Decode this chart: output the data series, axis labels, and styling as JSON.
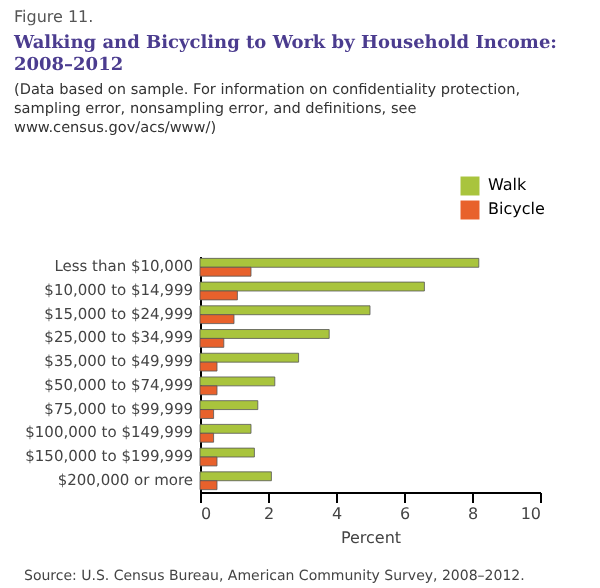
{
  "chart_data": {
    "type": "bar",
    "orientation": "horizontal",
    "title": "Walking and Bicycling to Work by Household Income:\n2008–2012",
    "subtitle": "(Data based on sample. For information on confidentiality protection,\nsampling error, nonsampling error, and definitions, see\nwww.census.gov/acs/www/)",
    "annotations": [
      "Figure 11.",
      "Source: U.S. Census Bureau, American Community Survey, 2008–2012."
    ],
    "categories": [
      "Less than $10,000",
      "$10,000 to $14,999",
      "$15,000 to $24,999",
      "$25,000 to $34,999",
      "$35,000 to $49,999",
      "$50,000 to $74,999",
      "$75,000 to $99,999",
      "$100,000 to $149,999",
      "$150,000 to $199,999",
      "$200,000 or more"
    ],
    "series": [
      {
        "name": "Walk",
        "color": "#a9c43d",
        "values": [
          8.2,
          6.6,
          5.0,
          3.8,
          2.9,
          2.2,
          1.7,
          1.5,
          1.6,
          2.1
        ]
      },
      {
        "name": "Bicycle",
        "color": "#e8612c",
        "values": [
          1.5,
          1.1,
          1.0,
          0.7,
          0.5,
          0.5,
          0.4,
          0.4,
          0.5,
          0.5
        ]
      }
    ],
    "xlabel": "Percent",
    "xlim": [
      0,
      10
    ],
    "xticks": [
      0,
      2,
      4,
      6,
      8,
      10
    ],
    "grid": false,
    "legend": "top right"
  }
}
